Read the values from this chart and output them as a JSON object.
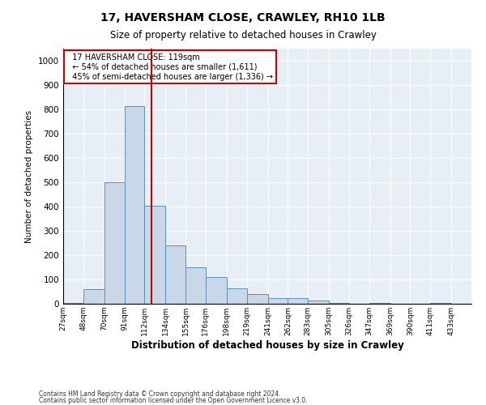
{
  "title1": "17, HAVERSHAM CLOSE, CRAWLEY, RH10 1LB",
  "title2": "Size of property relative to detached houses in Crawley",
  "xlabel": "Distribution of detached houses by size in Crawley",
  "ylabel": "Number of detached properties",
  "annotation_title": "17 HAVERSHAM CLOSE: 119sqm",
  "annotation_line1": "← 54% of detached houses are smaller (1,611)",
  "annotation_line2": "45% of semi-detached houses are larger (1,336) →",
  "footer1": "Contains HM Land Registry data © Crown copyright and database right 2024.",
  "footer2": "Contains public sector information licensed under the Open Government Licence v3.0.",
  "property_size": 119,
  "bar_color": "#c8d8e8",
  "bar_edge_color": "#6090b8",
  "vline_color": "#cc0000",
  "background_color": "#e8eef5",
  "bins": [
    27,
    48,
    70,
    91,
    112,
    134,
    155,
    176,
    198,
    219,
    241,
    262,
    283,
    305,
    326,
    347,
    369,
    390,
    411,
    433,
    454
  ],
  "heights": [
    5,
    60,
    500,
    815,
    405,
    240,
    150,
    110,
    65,
    40,
    25,
    25,
    15,
    5,
    0,
    5,
    0,
    0,
    5,
    0
  ],
  "ylim": [
    0,
    1050
  ],
  "yticks": [
    0,
    100,
    200,
    300,
    400,
    500,
    600,
    700,
    800,
    900,
    1000
  ]
}
